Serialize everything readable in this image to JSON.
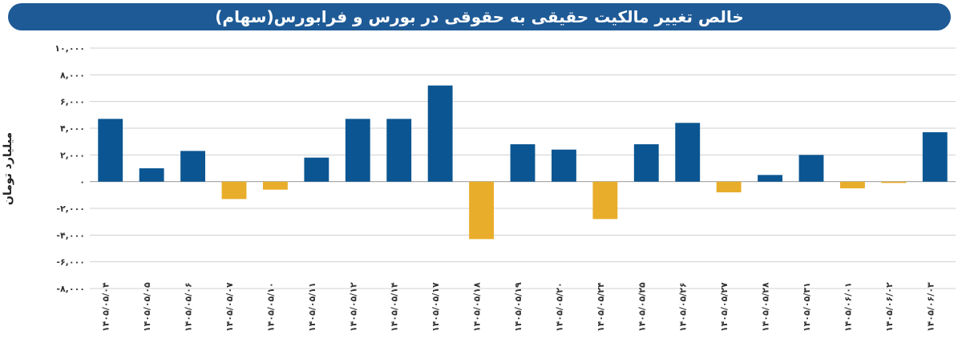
{
  "chart_data": {
    "type": "bar",
    "title": "خالص تغییر مالکیت حقیقی به حقوقی در بورس و فرابورس(سهام)",
    "ylabel": "میلیارد تومان",
    "xlabel": "",
    "ylim": [
      -8000,
      10000
    ],
    "yticks": [
      10000,
      8000,
      6000,
      4000,
      2000,
      0,
      -2000,
      -4000,
      -6000,
      -8000
    ],
    "ytick_labels": [
      "۱۰,۰۰۰",
      "۸,۰۰۰",
      "۶,۰۰۰",
      "۴,۰۰۰",
      "۲,۰۰۰",
      "۰",
      "-۲,۰۰۰",
      "-۴,۰۰۰",
      "-۶,۰۰۰",
      "-۸,۰۰۰"
    ],
    "grid": true,
    "categories": [
      "۱۴۰۵/۰۵/۰۴",
      "۱۴۰۵/۰۵/۰۵",
      "۱۴۰۵/۰۵/۰۶",
      "۱۴۰۵/۰۵/۰۷",
      "۱۴۰۵/۰۵/۱۰",
      "۱۴۰۵/۰۵/۱۱",
      "۱۴۰۵/۰۵/۱۲",
      "۱۴۰۵/۰۵/۱۴",
      "۱۴۰۵/۰۵/۱۷",
      "۱۴۰۵/۰۵/۱۸",
      "۱۴۰۵/۰۵/۱۹",
      "۱۴۰۵/۰۵/۲۰",
      "۱۴۰۵/۰۵/۲۴",
      "۱۴۰۵/۰۵/۲۵",
      "۱۴۰۵/۰۵/۲۶",
      "۱۴۰۵/۰۵/۲۷",
      "۱۴۰۵/۰۵/۲۸",
      "۱۴۰۵/۰۵/۳۱",
      "۱۴۰۵/۰۶/۰۱",
      "۱۴۰۵/۰۶/۰۲",
      "۱۴۰۵/۰۶/۰۳"
    ],
    "values": [
      4700,
      1000,
      2300,
      -1300,
      -600,
      1800,
      4700,
      4700,
      7200,
      -4300,
      2800,
      2400,
      -2800,
      2800,
      4400,
      -800,
      500,
      2000,
      -500,
      -100,
      3700
    ],
    "colors": {
      "positive": "#0b5692",
      "negative": "#e8ad2a",
      "grid": "#d0d0d0",
      "title_bar": "#1e5a96"
    }
  }
}
